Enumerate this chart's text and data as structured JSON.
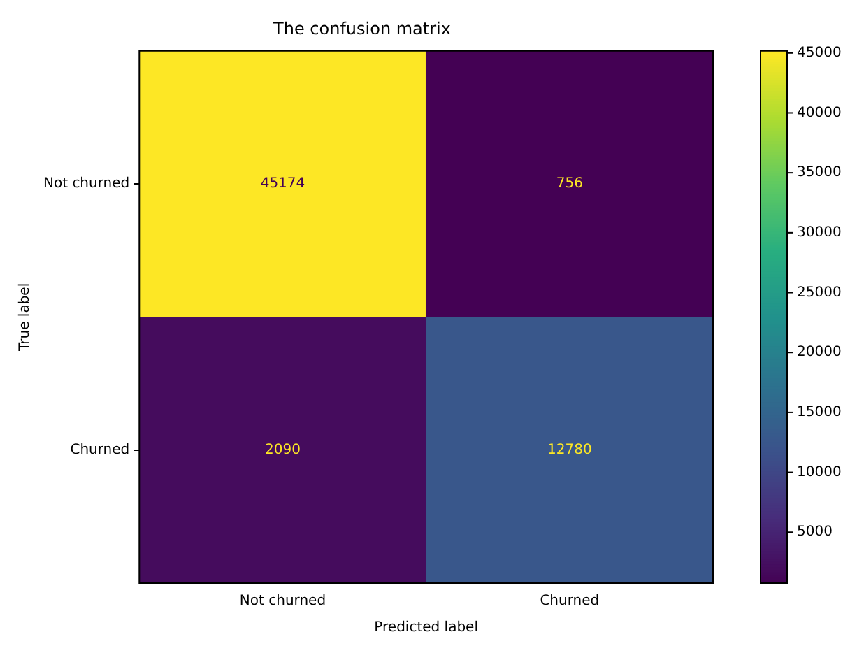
{
  "chart_data": {
    "type": "heatmap",
    "title": "The confusion matrix",
    "xlabel": "Predicted label",
    "ylabel": "True label",
    "categories": [
      "Not churned",
      "Churned"
    ],
    "y_categories": [
      "Not churned",
      "Churned"
    ],
    "cells": [
      [
        45174,
        756
      ],
      [
        2090,
        12780
      ]
    ],
    "clim": [
      756,
      45174
    ],
    "cticks": [
      5000,
      10000,
      15000,
      20000,
      25000,
      30000,
      35000,
      40000,
      45000
    ],
    "data_labels": true
  }
}
